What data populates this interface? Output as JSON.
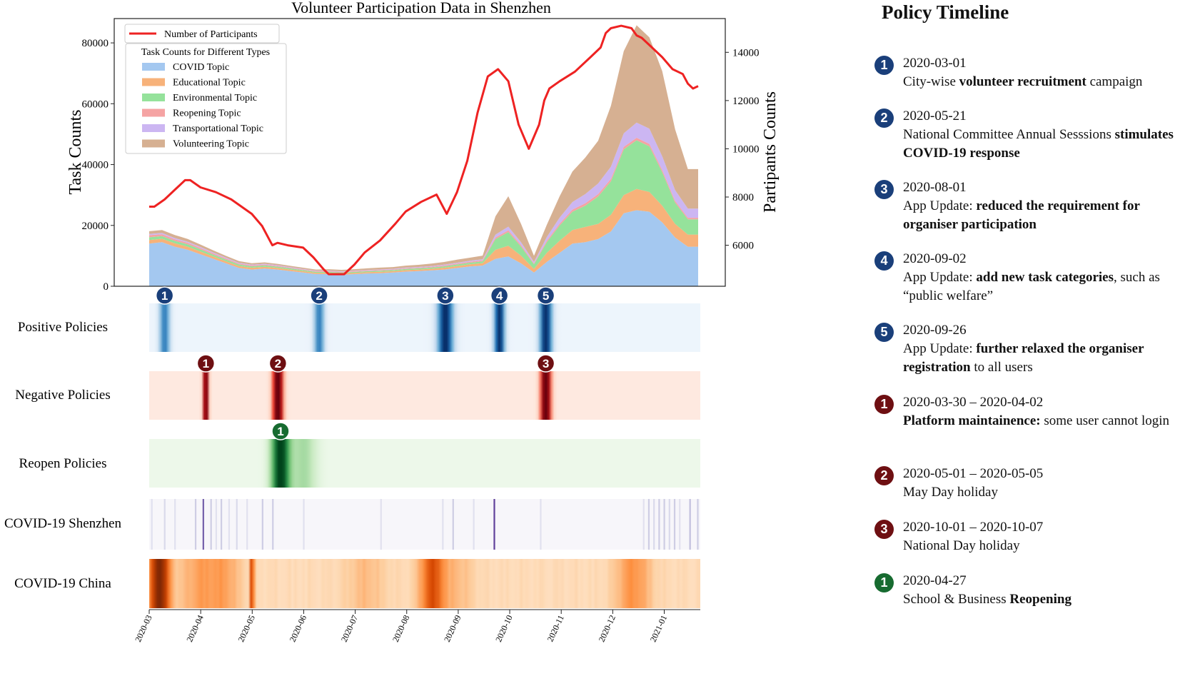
{
  "chart_data": {
    "type": "area",
    "title": "Volunteer Participation Data in Shenzhen",
    "ylabel_left": "Task Counts",
    "ylabel_right": "Partipants Counts",
    "ylim_left": [
      0,
      88000
    ],
    "ylim_right": [
      4300,
      15400
    ],
    "yticks_left": [
      "0",
      "20000",
      "40000",
      "60000",
      "80000"
    ],
    "yticks_right": [
      "6000",
      "8000",
      "10000",
      "12000",
      "14000"
    ],
    "x_tick_labels": [
      "2020-03",
      "2020-04",
      "2020-05",
      "2020-06",
      "2020-07",
      "2020-08",
      "2020-09",
      "2020-10",
      "2020-11",
      "2020-12",
      "2021-01"
    ],
    "x_months": [
      0,
      1,
      2,
      3,
      4,
      5,
      6,
      7,
      8,
      9,
      10
    ],
    "x": [
      0.0,
      0.25,
      0.5,
      0.75,
      1.0,
      1.25,
      1.5,
      1.75,
      2.0,
      2.25,
      2.5,
      2.75,
      3.0,
      3.25,
      3.5,
      3.75,
      4.0,
      4.25,
      4.5,
      4.75,
      5.0,
      5.25,
      5.5,
      5.75,
      6.0,
      6.25,
      6.5,
      6.75,
      7.0,
      7.25,
      7.5,
      7.75,
      8.0,
      8.25,
      8.5,
      8.75,
      9.0,
      9.25,
      9.5,
      9.75,
      10.0,
      10.25,
      10.5,
      10.7
    ],
    "legend_line": "Number of Participants",
    "legend_area_title": "Task Counts for Different Types",
    "series": [
      {
        "name": "COVID Topic",
        "color": "#a4c8f0",
        "values": [
          14000,
          14500,
          13000,
          12000,
          10500,
          9000,
          7500,
          6000,
          5500,
          5800,
          5500,
          5000,
          4500,
          4000,
          4000,
          3800,
          4000,
          4200,
          4300,
          4500,
          4800,
          5000,
          5200,
          5500,
          6000,
          6500,
          6800,
          9000,
          9800,
          7500,
          4500,
          8000,
          11000,
          14000,
          14500,
          15500,
          18000,
          24000,
          25000,
          24500,
          21000,
          16000,
          13000,
          13000
        ]
      },
      {
        "name": "Educational Topic",
        "color": "#f7b27a",
        "values": [
          1200,
          1100,
          1100,
          1000,
          900,
          800,
          700,
          650,
          600,
          600,
          550,
          500,
          450,
          400,
          400,
          400,
          400,
          420,
          450,
          450,
          500,
          500,
          550,
          600,
          650,
          700,
          800,
          3000,
          3500,
          2500,
          1200,
          3000,
          4000,
          4500,
          5000,
          5000,
          5500,
          6000,
          7000,
          6500,
          5500,
          4500,
          4000,
          4000
        ]
      },
      {
        "name": "Environmental Topic",
        "color": "#95e29b",
        "values": [
          900,
          900,
          800,
          800,
          700,
          600,
          550,
          500,
          450,
          450,
          400,
          380,
          350,
          320,
          320,
          320,
          320,
          330,
          350,
          350,
          380,
          380,
          400,
          450,
          500,
          550,
          600,
          3500,
          4500,
          3000,
          1500,
          3500,
          5000,
          6000,
          7000,
          9000,
          11000,
          15000,
          16000,
          15000,
          11000,
          7000,
          5000,
          5000
        ]
      },
      {
        "name": "Reopening Topic",
        "color": "#f5a3a3",
        "values": [
          700,
          600,
          550,
          500,
          450,
          400,
          350,
          300,
          300,
          280,
          250,
          230,
          220,
          200,
          200,
          200,
          200,
          210,
          220,
          220,
          230,
          230,
          250,
          270,
          300,
          330,
          350,
          500,
          600,
          500,
          300,
          500,
          600,
          700,
          800,
          800,
          800,
          800,
          800,
          800,
          700,
          600,
          500,
          500
        ]
      },
      {
        "name": "Transportational Topic",
        "color": "#ccb6f2",
        "values": [
          400,
          400,
          400,
          350,
          350,
          300,
          280,
          250,
          240,
          230,
          220,
          200,
          190,
          180,
          180,
          180,
          180,
          190,
          200,
          200,
          220,
          220,
          240,
          260,
          280,
          300,
          320,
          1000,
          1200,
          900,
          500,
          1200,
          2000,
          2500,
          3000,
          3500,
          4000,
          4500,
          5000,
          5000,
          4500,
          3500,
          3000,
          3000
        ]
      },
      {
        "name": "Volunteering Topic",
        "color": "#d6b092",
        "values": [
          900,
          1000,
          1000,
          900,
          800,
          700,
          600,
          550,
          500,
          500,
          450,
          400,
          400,
          400,
          500,
          500,
          500,
          550,
          600,
          600,
          650,
          700,
          800,
          900,
          1000,
          1000,
          1200,
          6000,
          10000,
          6000,
          2000,
          4000,
          7000,
          10000,
          12000,
          14000,
          20000,
          27000,
          32000,
          30000,
          28000,
          20000,
          13000,
          13000
        ]
      }
    ],
    "participants": {
      "name": "Number of Participants",
      "color": "#ee2222",
      "x": [
        0.0,
        0.1,
        0.3,
        0.5,
        0.7,
        0.8,
        1.0,
        1.3,
        1.6,
        2.0,
        2.2,
        2.4,
        2.5,
        2.7,
        3.0,
        3.2,
        3.4,
        3.5,
        3.8,
        4.0,
        4.2,
        4.5,
        4.8,
        5.0,
        5.3,
        5.6,
        5.8,
        6.0,
        6.2,
        6.4,
        6.6,
        6.8,
        7.0,
        7.2,
        7.4,
        7.6,
        7.7,
        7.8,
        8.0,
        8.3,
        8.6,
        8.8,
        8.9,
        9.0,
        9.2,
        9.4,
        9.5,
        9.6,
        9.8,
        10.0,
        10.2,
        10.4,
        10.5,
        10.6,
        10.7
      ],
      "values": [
        7600,
        7600,
        7900,
        8300,
        8700,
        8700,
        8400,
        8200,
        7900,
        7300,
        6800,
        6000,
        6100,
        6000,
        5900,
        5500,
        5000,
        4800,
        4800,
        5200,
        5700,
        6200,
        6900,
        7400,
        7800,
        8100,
        7300,
        8200,
        9500,
        11500,
        13000,
        13300,
        12800,
        11000,
        10000,
        11000,
        12000,
        12500,
        12800,
        13200,
        13800,
        14200,
        14800,
        15000,
        15100,
        15000,
        14700,
        14600,
        14200,
        13800,
        13300,
        13100,
        12700,
        12500,
        12600
      ]
    },
    "heatmaps": [
      {
        "name": "Positive Policies",
        "label": "Positive Policies",
        "cmap": "blues",
        "base": 0.05,
        "bumps": [
          {
            "c": 0.3,
            "w": 0.1,
            "h": 0.65
          },
          {
            "c": 3.3,
            "w": 0.1,
            "h": 0.65
          },
          {
            "c": 5.75,
            "w": 0.15,
            "h": 1.0
          },
          {
            "c": 6.8,
            "w": 0.1,
            "h": 1.0
          },
          {
            "c": 7.7,
            "w": 0.12,
            "h": 1.0
          }
        ]
      },
      {
        "name": "Negative Policies",
        "label": "Negative Policies",
        "cmap": "reds",
        "base": 0.05,
        "bumps": [
          {
            "c": 1.1,
            "w": 0.05,
            "h": 1.0
          },
          {
            "c": 2.5,
            "w": 0.1,
            "h": 1.0
          },
          {
            "c": 7.7,
            "w": 0.1,
            "h": 1.0
          }
        ]
      },
      {
        "name": "Reopen Policies",
        "label": "Reopen Policies",
        "cmap": "greens",
        "base": 0.05,
        "bumps": [
          {
            "c": 2.55,
            "w": 0.18,
            "h": 1.0
          },
          {
            "c": 3.0,
            "w": 0.25,
            "h": 0.3
          }
        ]
      },
      {
        "name": "COVID-19 Shenzhen",
        "label": "COVID-19 Shenzhen",
        "cmap": "purples",
        "base": 0.04,
        "lines": [
          [
            0.05,
            0.2
          ],
          [
            0.3,
            0.25
          ],
          [
            0.5,
            0.2
          ],
          [
            0.9,
            0.3
          ],
          [
            1.05,
            0.7
          ],
          [
            1.2,
            0.3
          ],
          [
            1.3,
            0.2
          ],
          [
            1.4,
            0.3
          ],
          [
            1.55,
            0.2
          ],
          [
            1.7,
            0.25
          ],
          [
            1.9,
            0.2
          ],
          [
            2.2,
            0.3
          ],
          [
            2.4,
            0.3
          ],
          [
            3.0,
            0.2
          ],
          [
            4.5,
            0.2
          ],
          [
            5.7,
            0.2
          ],
          [
            5.9,
            0.3
          ],
          [
            6.3,
            0.2
          ],
          [
            6.7,
            0.8
          ],
          [
            7.6,
            0.2
          ],
          [
            9.6,
            0.2
          ],
          [
            9.7,
            0.3
          ],
          [
            9.8,
            0.25
          ],
          [
            9.9,
            0.3
          ],
          [
            10.0,
            0.3
          ],
          [
            10.1,
            0.25
          ],
          [
            10.2,
            0.3
          ],
          [
            10.3,
            0.2
          ],
          [
            10.5,
            0.35
          ],
          [
            10.65,
            0.3
          ]
        ]
      },
      {
        "name": "COVID-19 China",
        "label": "COVID-19 China",
        "cmap": "oranges",
        "base": 0.15,
        "bumps": [
          {
            "c": 0.2,
            "w": 0.2,
            "h": 0.85
          },
          {
            "c": 2.0,
            "w": 0.03,
            "h": 0.9
          },
          {
            "c": 1.0,
            "w": 0.4,
            "h": 0.25
          },
          {
            "c": 1.5,
            "w": 0.3,
            "h": 0.2
          },
          {
            "c": 4.2,
            "w": 0.4,
            "h": 0.15
          },
          {
            "c": 5.5,
            "w": 0.25,
            "h": 0.55
          },
          {
            "c": 6.0,
            "w": 0.3,
            "h": 0.15
          },
          {
            "c": 9.4,
            "w": 0.35,
            "h": 0.3
          }
        ]
      }
    ],
    "policy_markers": [
      {
        "row": "Positive Policies",
        "label": "1",
        "x": 0.3,
        "color": "#1a3f7a"
      },
      {
        "row": "Positive Policies",
        "label": "2",
        "x": 3.3,
        "color": "#1a3f7a"
      },
      {
        "row": "Positive Policies",
        "label": "3",
        "x": 5.75,
        "color": "#1a3f7a"
      },
      {
        "row": "Positive Policies",
        "label": "4",
        "x": 6.8,
        "color": "#1a3f7a"
      },
      {
        "row": "Positive Policies",
        "label": "5",
        "x": 7.7,
        "color": "#1a3f7a"
      },
      {
        "row": "Negative Policies",
        "label": "1",
        "x": 1.1,
        "color": "#6e0f12"
      },
      {
        "row": "Negative Policies",
        "label": "2",
        "x": 2.5,
        "color": "#6e0f12"
      },
      {
        "row": "Negative Policies",
        "label": "3",
        "x": 7.7,
        "color": "#6e0f12"
      },
      {
        "row": "Reopen Policies",
        "label": "1",
        "x": 2.55,
        "color": "#176b30"
      }
    ]
  },
  "timeline": {
    "title": "Policy Timeline",
    "items": [
      {
        "badge": "1",
        "color": "#1a3f7a",
        "date": "2020-03-01",
        "parts": [
          [
            "City-wise ",
            false
          ],
          [
            "volunteer recruitment",
            true
          ],
          [
            " campaign",
            false
          ]
        ]
      },
      {
        "badge": "2",
        "color": "#1a3f7a",
        "date": "2020-05-21",
        "parts": [
          [
            "National Committee Annual Sesssions ",
            false
          ],
          [
            "stimulates COVID-19 response",
            true
          ]
        ]
      },
      {
        "badge": "3",
        "color": "#1a3f7a",
        "date": "2020-08-01",
        "parts": [
          [
            "App Update: ",
            false
          ],
          [
            "reduced the requirement for organiser participation",
            true
          ]
        ]
      },
      {
        "badge": "4",
        "color": "#1a3f7a",
        "date": "2020-09-02",
        "parts": [
          [
            "App Update: ",
            false
          ],
          [
            "add new task categories",
            true
          ],
          [
            ", such as “public welfare”",
            false
          ]
        ]
      },
      {
        "badge": "5",
        "color": "#1a3f7a",
        "date": "2020-09-26",
        "parts": [
          [
            "App Update: ",
            false
          ],
          [
            "further relaxed the organiser registration",
            true
          ],
          [
            " to all users",
            false
          ]
        ]
      },
      {
        "badge": "1",
        "color": "#6e0f12",
        "date": "2020-03-30 – 2020-04-02",
        "parts": [
          [
            "Platform maintainence:",
            true
          ],
          [
            " some user cannot login",
            false
          ]
        ]
      },
      {
        "badge": "2",
        "color": "#6e0f12",
        "date": "2020-05-01 – 2020-05-05",
        "parts": [
          [
            "May Day holiday",
            false
          ]
        ]
      },
      {
        "badge": "3",
        "color": "#6e0f12",
        "date": "2020-10-01 – 2020-10-07",
        "parts": [
          [
            "National Day holiday",
            false
          ]
        ]
      },
      {
        "badge": "1",
        "color": "#176b30",
        "date": "2020-04-27",
        "parts": [
          [
            "School & Business ",
            false
          ],
          [
            "Reopening",
            true
          ]
        ]
      }
    ]
  }
}
